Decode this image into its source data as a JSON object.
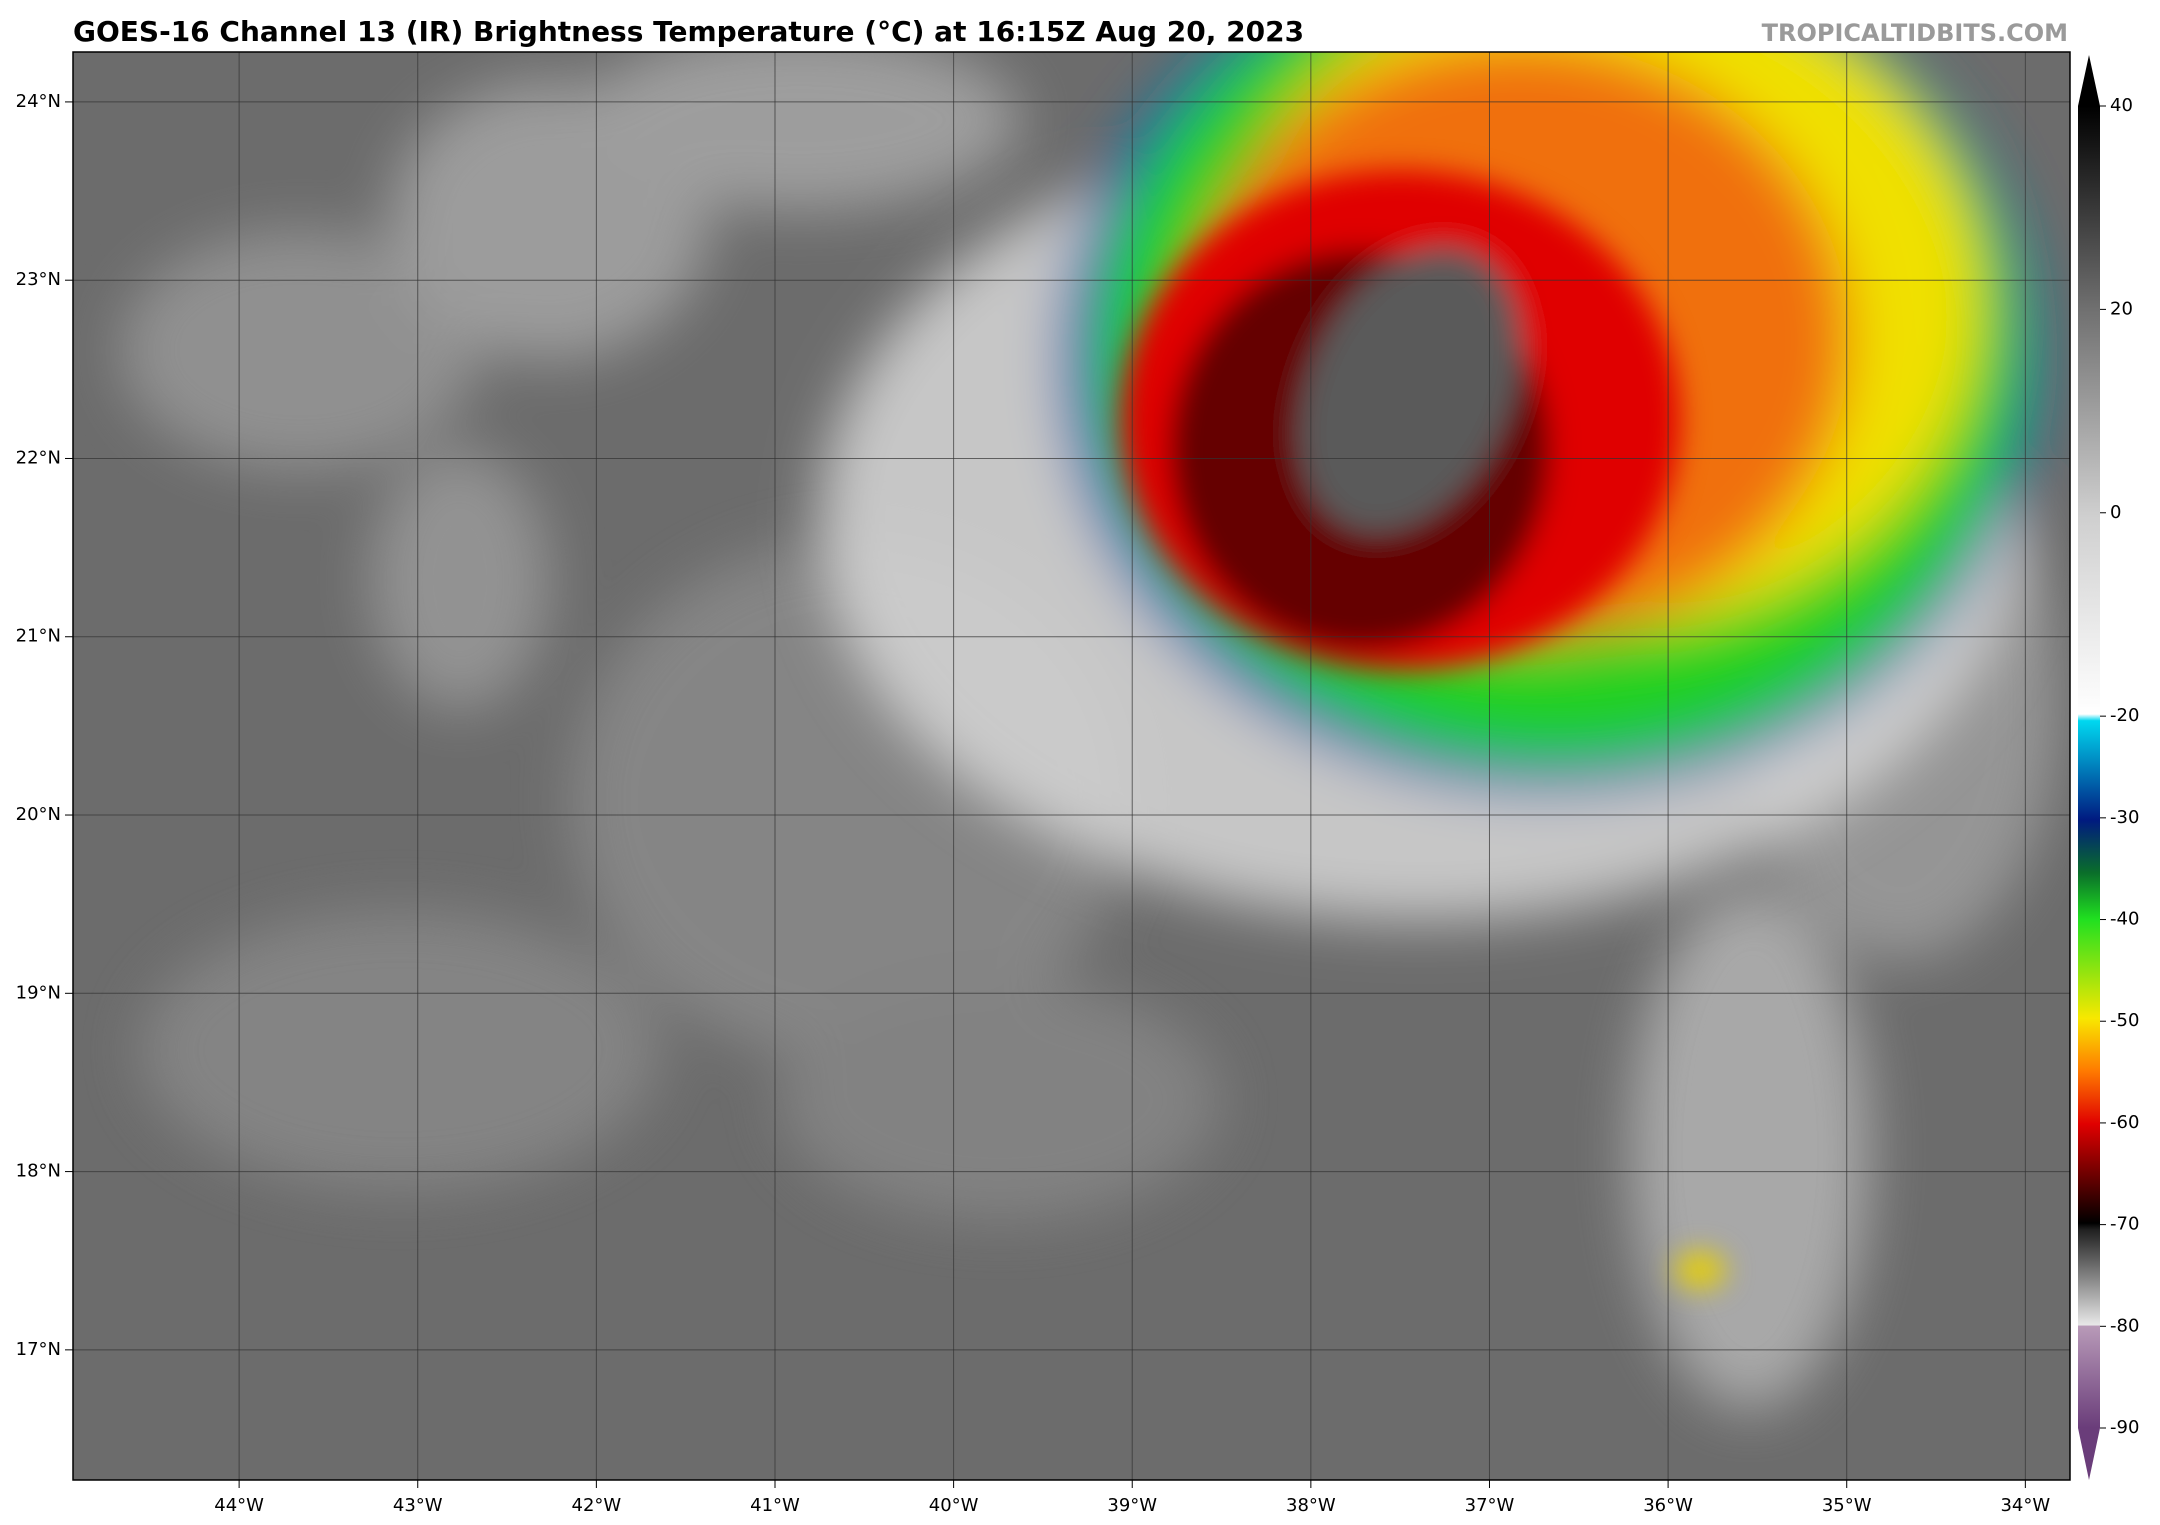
{
  "title": "GOES-16 Channel 13 (IR) Brightness Temperature (°C) at 16:15Z Aug 20, 2023",
  "watermark": "TROPICALTIDBITS.COM",
  "map": {
    "lonlim": [
      -44.93,
      -33.75
    ],
    "latlim": [
      16.27,
      24.28
    ],
    "lat_labels": [
      {
        "value": 24,
        "label": "24°N"
      },
      {
        "value": 23,
        "label": "23°N"
      },
      {
        "value": 22,
        "label": "22°N"
      },
      {
        "value": 21,
        "label": "21°N"
      },
      {
        "value": 20,
        "label": "20°N"
      },
      {
        "value": 19,
        "label": "19°N"
      },
      {
        "value": 18,
        "label": "18°N"
      },
      {
        "value": 17,
        "label": "17°N"
      }
    ],
    "lon_labels": [
      {
        "value": -44,
        "label": "44°W"
      },
      {
        "value": -43,
        "label": "43°W"
      },
      {
        "value": -42,
        "label": "42°W"
      },
      {
        "value": -41,
        "label": "41°W"
      },
      {
        "value": -40,
        "label": "40°W"
      },
      {
        "value": -39,
        "label": "39°W"
      },
      {
        "value": -38,
        "label": "38°W"
      },
      {
        "value": -37,
        "label": "37°W"
      },
      {
        "value": -36,
        "label": "36°W"
      },
      {
        "value": -35,
        "label": "35°W"
      },
      {
        "value": -34,
        "label": "34°W"
      }
    ]
  },
  "colorbar": {
    "clim": [
      -90,
      40
    ],
    "ticks": [
      40,
      20,
      0,
      -20,
      -30,
      -40,
      -50,
      -60,
      -70,
      -80,
      -90
    ]
  }
}
